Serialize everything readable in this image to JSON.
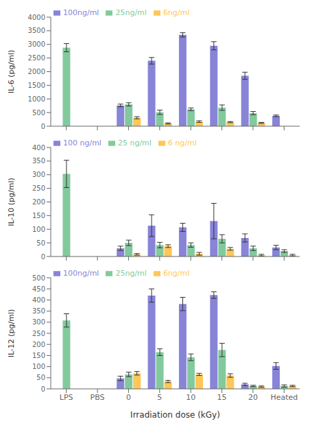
{
  "chart_data": [
    {
      "type": "bar",
      "ylabel": "IL-6 (pg/ml)",
      "ylim": [
        0,
        4000
      ],
      "yticks": [
        0,
        500,
        1000,
        1500,
        2000,
        2500,
        3000,
        3500,
        4000
      ],
      "categories": [
        "LPS",
        "PBS",
        "0",
        "5",
        "10",
        "15",
        "20",
        "Heated"
      ],
      "legend": "upper left",
      "tick_labels": "y",
      "series": [
        {
          "name": "100ng/ml",
          "color": "#8884d8",
          "values": [
            null,
            null,
            760,
            2400,
            3350,
            2950,
            1850,
            380
          ],
          "errors": [
            null,
            null,
            50,
            120,
            80,
            150,
            130,
            30
          ]
        },
        {
          "name": "25ng/ml",
          "color": "#82ca9d",
          "values": [
            2880,
            null,
            800,
            510,
            620,
            680,
            480,
            null
          ],
          "errors": [
            150,
            null,
            60,
            80,
            50,
            100,
            60,
            null
          ]
        },
        {
          "name": "6ng/ml",
          "color": "#ffc658",
          "values": [
            null,
            null,
            310,
            100,
            170,
            150,
            120,
            null
          ],
          "errors": [
            null,
            null,
            40,
            20,
            30,
            20,
            20,
            null
          ]
        }
      ]
    },
    {
      "type": "bar",
      "ylabel": "IL-10 (pg/ml)",
      "ylim": [
        0,
        400
      ],
      "yticks": [
        0,
        50,
        100,
        150,
        200,
        250,
        300,
        350,
        400
      ],
      "categories": [
        "LPS",
        "PBS",
        "0",
        "5",
        "10",
        "15",
        "20",
        "Heated"
      ],
      "legend": "upper left",
      "tick_labels": "y",
      "series": [
        {
          "name": "100 ng/ml",
          "color": "#8884d8",
          "values": [
            null,
            null,
            30,
            113,
            107,
            130,
            68,
            33
          ],
          "errors": [
            null,
            null,
            8,
            40,
            15,
            65,
            15,
            8
          ]
        },
        {
          "name": "25 ng/ml",
          "color": "#82ca9d",
          "values": [
            303,
            null,
            50,
            42,
            42,
            65,
            30,
            20
          ],
          "errors": [
            50,
            null,
            10,
            10,
            8,
            15,
            8,
            5
          ]
        },
        {
          "name": "6 ng/ml",
          "color": "#ffc658",
          "values": [
            null,
            null,
            8,
            38,
            10,
            28,
            5,
            5
          ],
          "errors": [
            null,
            null,
            3,
            5,
            5,
            5,
            3,
            3
          ]
        }
      ]
    },
    {
      "type": "bar",
      "ylabel": "IL-12 (pg/ml)",
      "xlabel": "Irradiation dose (kGy)",
      "ylim": [
        0,
        500
      ],
      "yticks": [
        0,
        50,
        100,
        150,
        200,
        250,
        300,
        350,
        400,
        450,
        500
      ],
      "categories": [
        "LPS",
        "PBS",
        "0",
        "5",
        "10",
        "15",
        "20",
        "Heated"
      ],
      "legend": "upper left",
      "series": [
        {
          "name": "100ng/ml",
          "color": "#8884d8",
          "values": [
            null,
            null,
            47,
            420,
            382,
            422,
            20,
            103
          ],
          "errors": [
            null,
            null,
            10,
            30,
            30,
            15,
            5,
            15
          ]
        },
        {
          "name": "25ng/ml",
          "color": "#82ca9d",
          "values": [
            308,
            null,
            65,
            165,
            142,
            175,
            13,
            13
          ],
          "errors": [
            30,
            null,
            10,
            15,
            15,
            30,
            3,
            5
          ]
        },
        {
          "name": "6ng/ml",
          "color": "#ffc658",
          "values": [
            null,
            null,
            70,
            33,
            65,
            60,
            10,
            13
          ],
          "errors": [
            null,
            null,
            8,
            5,
            5,
            8,
            3,
            3
          ]
        }
      ]
    }
  ]
}
